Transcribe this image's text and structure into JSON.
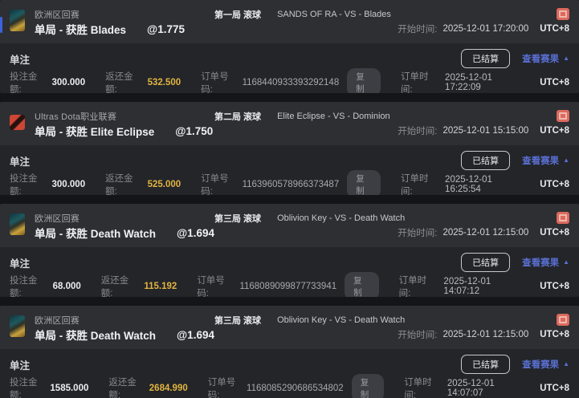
{
  "labels": {
    "single_bet": "单注",
    "settled": "已结算",
    "view_result": "查看赛果",
    "view_result_arrow": "▲",
    "bet_amount": "投注金额:",
    "return_amount": "返还金额:",
    "order_no": "订单号码:",
    "copy": "复制",
    "start_time": "开始时间:",
    "order_time": "订单时间:",
    "timezone": "UTC+8"
  },
  "colors": {
    "link_blue": "#5a6fd2",
    "amount_yellow": "#e2b440",
    "live_red": "#dc695d",
    "card_header_bg": "#2d2f33",
    "card_body_bg": "#232529"
  },
  "icons": {
    "card_game_icons": [
      "esports-gold-game-icon",
      "dota2-game-icon",
      "esports-gold-game-icon",
      "esports-gold-game-icon"
    ],
    "top_right": "live-result-red-icon"
  },
  "cards": [
    {
      "game": "lol",
      "league": "欧洲区回赛",
      "period": "第一局 滚球",
      "match": "SANDS OF RA - VS - Blades",
      "selection": "单局 - 获胜 Blades",
      "odds": "@1.775",
      "start_time": "2025-12-01 17:20:00",
      "bet_amount": "300.000",
      "return_amount": "532.500",
      "order_no": "1168440933393292148",
      "order_time": "2025-12-01 17:22:09"
    },
    {
      "game": "dota",
      "league": "Ultras Dota职业联赛",
      "period": "第二局 滚球",
      "match": "Elite Eclipse - VS - Dominion",
      "selection": "单局 - 获胜 Elite Eclipse",
      "odds": "@1.750",
      "start_time": "2025-12-01 15:15:00",
      "bet_amount": "300.000",
      "return_amount": "525.000",
      "order_no": "1163960578966373487",
      "order_time": "2025-12-01 16:25:54"
    },
    {
      "game": "lol",
      "league": "欧洲区回赛",
      "period": "第三局 滚球",
      "match": "Oblivion Key - VS - Death Watch",
      "selection": "单局 - 获胜 Death Watch",
      "odds": "@1.694",
      "start_time": "2025-12-01 12:15:00",
      "bet_amount": "68.000",
      "return_amount": "115.192",
      "order_no": "1168089099877733941",
      "order_time": "2025-12-01 14:07:12"
    },
    {
      "game": "lol",
      "league": "欧洲区回赛",
      "period": "第三局 滚球",
      "match": "Oblivion Key - VS - Death Watch",
      "selection": "单局 - 获胜 Death Watch",
      "odds": "@1.694",
      "start_time": "2025-12-01 12:15:00",
      "bet_amount": "1585.000",
      "return_amount": "2684.990",
      "order_no": "1168085290686534802",
      "order_time": "2025-12-01 14:07:07"
    }
  ]
}
